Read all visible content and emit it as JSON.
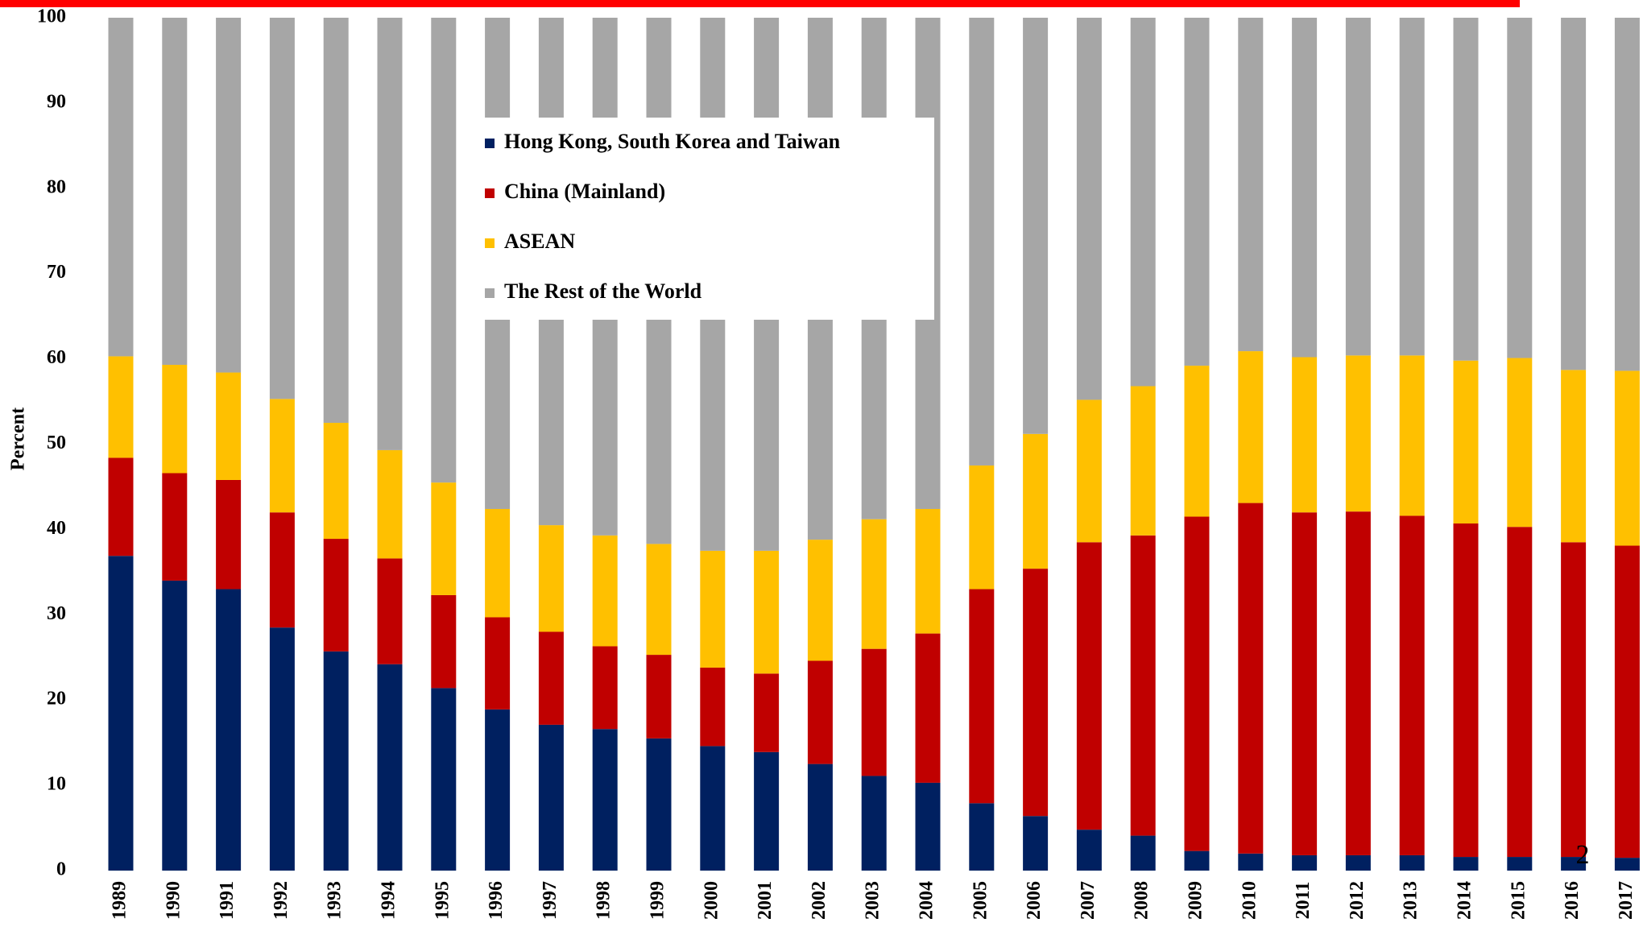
{
  "chart_data": {
    "type": "stacked_bar",
    "y_label": "Percent",
    "page_number": "2",
    "categories": [
      "1989",
      "1990",
      "1991",
      "1992",
      "1993",
      "1994",
      "1995",
      "1996",
      "1997",
      "1998",
      "1999",
      "2000",
      "2001",
      "2002",
      "2003",
      "2004",
      "2005",
      "2006",
      "2007",
      "2008",
      "2009",
      "2010",
      "2011",
      "2012",
      "2013",
      "2014",
      "2015",
      "2016",
      "2017"
    ],
    "series": [
      {
        "name": "Hong Kong,  South Korea and Taiwan",
        "color": "#002060",
        "values": [
          36.9,
          34,
          33,
          28.5,
          25.7,
          24.2,
          21.4,
          18.9,
          17.1,
          16.6,
          15.5,
          14.6,
          13.9,
          12.5,
          11.1,
          10.3,
          7.9,
          6.4,
          4.8,
          4.1,
          2.3,
          2.0,
          1.8,
          1.8,
          1.8,
          1.6,
          1.6,
          1.6,
          1.5
        ]
      },
      {
        "name": "China (Mainland)",
        "color": "#c00000",
        "values": [
          11.5,
          12.6,
          12.8,
          13.5,
          13.2,
          12.4,
          10.9,
          10.8,
          10.9,
          9.7,
          9.8,
          9.2,
          9.2,
          12.1,
          14.9,
          17.5,
          25.1,
          29,
          33.7,
          35.2,
          39.2,
          41.1,
          40.2,
          40.3,
          39.8,
          39.1,
          38.7,
          36.9,
          36.6
        ]
      },
      {
        "name": "ASEAN",
        "color": "#ffc000",
        "values": [
          11.9,
          12.7,
          12.6,
          13.3,
          13.6,
          12.7,
          13.2,
          12.7,
          12.5,
          13,
          13,
          13.7,
          14.4,
          14.2,
          15.2,
          14.6,
          14.5,
          15.8,
          16.7,
          17.5,
          17.7,
          17.8,
          18.2,
          18.3,
          18.8,
          19.1,
          19.8,
          20.2,
          20.5
        ]
      },
      {
        "name": "The Rest of the World",
        "color": "#a6a6a6",
        "values": [
          39.7,
          40.7,
          41.6,
          44.7,
          47.5,
          50.7,
          54.5,
          57.6,
          59.5,
          60.7,
          61.7,
          62.5,
          62.5,
          61.2,
          58.8,
          57.6,
          52.5,
          48.8,
          44.8,
          43.2,
          40.8,
          39.1,
          39.8,
          39.6,
          39.6,
          40.2,
          39.9,
          41.3,
          41.4
        ]
      }
    ],
    "ylim": [
      0,
      100
    ],
    "yticks": [
      0,
      10,
      20,
      30,
      40,
      50,
      60,
      70,
      80,
      90,
      100
    ]
  }
}
